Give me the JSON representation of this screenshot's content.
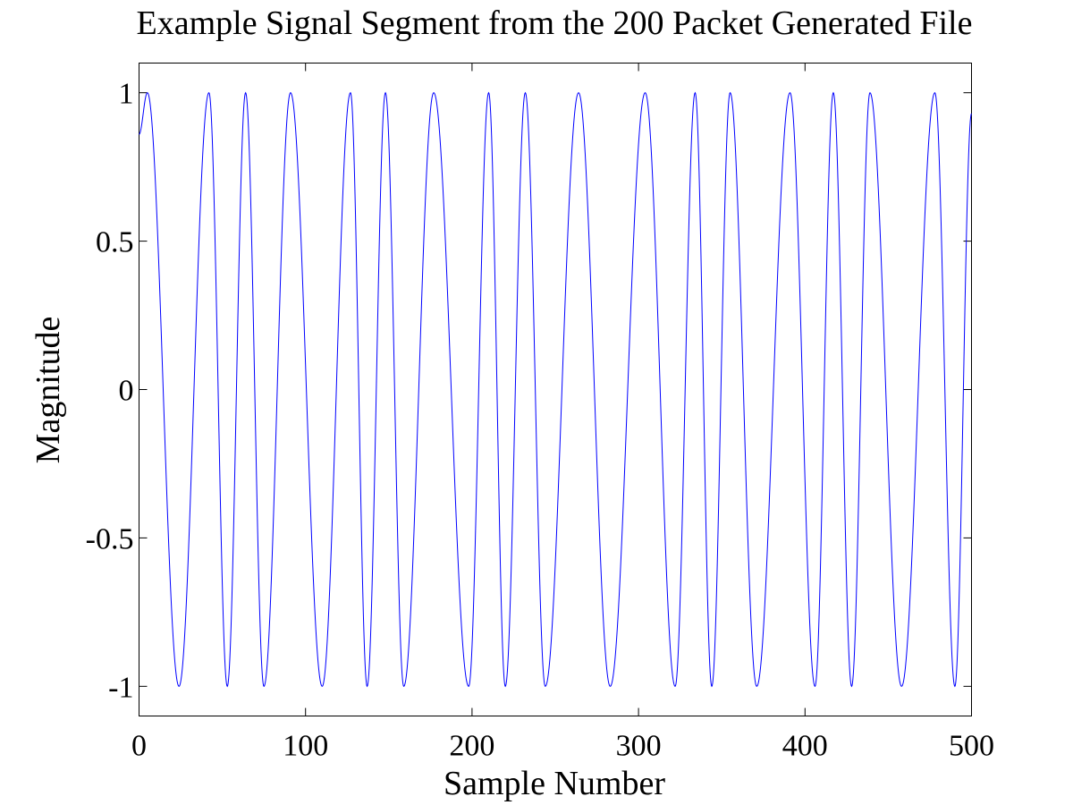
{
  "chart_data": {
    "type": "line",
    "title": "Example Signal Segment from the 200 Packet Generated File",
    "xlabel": "Sample Number",
    "ylabel": "Magnitude",
    "xlim": [
      0,
      500
    ],
    "ylim": [
      -1.1,
      1.1
    ],
    "grid": false,
    "legend": "none",
    "x_ticks": [
      0,
      100,
      200,
      300,
      400,
      500
    ],
    "x_tick_labels": [
      "0",
      "100",
      "200",
      "300",
      "400",
      "500"
    ],
    "y_ticks": [
      1,
      0.5,
      0,
      -0.5,
      -1
    ],
    "y_tick_labels": [
      "1",
      "0.5",
      "0",
      "-0.5",
      "-1"
    ],
    "series": [
      {
        "color": "#0000ff",
        "x": [
          0,
          5,
          24,
          42,
          53,
          64,
          75,
          91,
          110,
          127,
          137,
          148,
          159,
          177,
          198,
          210,
          220,
          232,
          244,
          264,
          283,
          304,
          322,
          334,
          344,
          355,
          371,
          391,
          406,
          417,
          428,
          439,
          458,
          478,
          490,
          500
        ],
        "y": [
          0.86,
          1,
          -1,
          1,
          -1,
          1,
          -1,
          1,
          -1,
          1,
          -1,
          1,
          -1,
          1,
          -1,
          1,
          -1,
          1,
          -1,
          1,
          -1,
          1,
          -1,
          1,
          -1,
          1,
          -1,
          1,
          -1,
          1,
          -1,
          1,
          -1,
          1,
          -1,
          0.93
        ]
      }
    ]
  }
}
